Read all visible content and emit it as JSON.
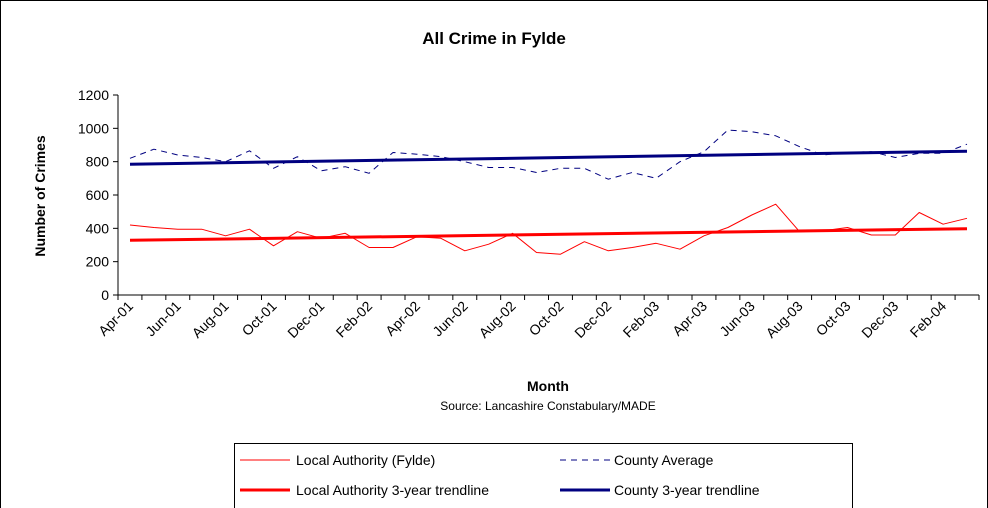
{
  "chart_data": {
    "type": "line",
    "title": "All Crime in Fylde",
    "xlabel": "Month",
    "ylabel": "Number of Crimes",
    "source": "Source: Lancashire Constabulary/MADE",
    "ylim": [
      0,
      1200
    ],
    "yticks": [
      0,
      200,
      400,
      600,
      800,
      1000,
      1200
    ],
    "xtick_labels": [
      "Apr-01",
      "Jun-01",
      "Aug-01",
      "Oct-01",
      "Dec-01",
      "Feb-02",
      "Apr-02",
      "Jun-02",
      "Aug-02",
      "Oct-02",
      "Dec-02",
      "Feb-03",
      "Apr-03",
      "Jun-03",
      "Aug-03",
      "Oct-03",
      "Dec-03",
      "Feb-04"
    ],
    "grid": false,
    "legend_position": "bottom",
    "series": [
      {
        "name": "Local Authority (Fylde)",
        "color": "#ff0000",
        "style": "solid-thin",
        "values": [
          420,
          405,
          395,
          395,
          355,
          395,
          295,
          380,
          340,
          370,
          285,
          285,
          350,
          340,
          265,
          305,
          370,
          255,
          245,
          320,
          265,
          285,
          310,
          275,
          355,
          405,
          480,
          545,
          380,
          385,
          405,
          360,
          360,
          495,
          425,
          460
        ]
      },
      {
        "name": "County Average",
        "color": "#000080",
        "style": "dashed-thin",
        "values": [
          820,
          875,
          840,
          825,
          800,
          865,
          760,
          830,
          745,
          770,
          730,
          855,
          845,
          830,
          800,
          765,
          765,
          735,
          760,
          760,
          695,
          735,
          700,
          800,
          860,
          990,
          980,
          955,
          890,
          840,
          855,
          860,
          825,
          850,
          850,
          905
        ]
      },
      {
        "name": "Local Authority 3-year trendline",
        "color": "#ff0000",
        "style": "solid-thick",
        "values": [
          328,
          398
        ]
      },
      {
        "name": "County 3-year trendline",
        "color": "#000080",
        "style": "solid-thick",
        "values": [
          785,
          863
        ]
      }
    ]
  }
}
